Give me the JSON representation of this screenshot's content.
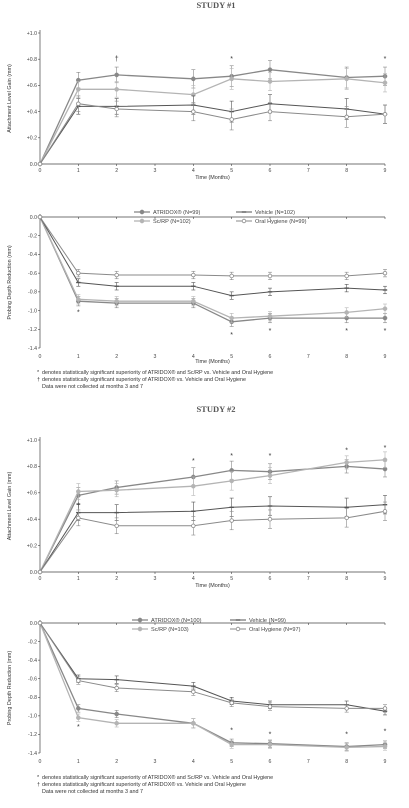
{
  "figure": {
    "study1_title": "STUDY #1",
    "study2_title": "STUDY #2",
    "footnote_star": "denotes statistically significant superiority of ATRIDOX® and Sc/RP vs. Vehicle and Oral Hygiene",
    "footnote_dagger": "denotes statistically significant superiority of ATRIDOX® vs. Vehicle and Oral Hygiene",
    "footnote_note": "Data were not collected at months 3 and 7",
    "star_symbol": "*",
    "dagger_symbol": "†"
  },
  "colors": {
    "axis": "#444444",
    "atridox": "#888888",
    "scrp": "#b4b4b4",
    "vehicle": "#555555",
    "oral_hygiene": "#8a8a8a"
  },
  "chart_data": [
    {
      "id": "s1_attachment",
      "type": "line",
      "xlabel": "Time (Months)",
      "ylabel": "Attachment Level Gain (mm)",
      "x": [
        0,
        1,
        2,
        3,
        4,
        5,
        6,
        7,
        8,
        9
      ],
      "x_ticks": [
        "0",
        "1",
        "2",
        "3",
        "4",
        "5",
        "6",
        "7",
        "8",
        "9"
      ],
      "ylim": [
        0,
        1.0
      ],
      "y_ticks": [
        0,
        0.2,
        0.4,
        0.6,
        0.8,
        1.0
      ],
      "y_tick_labels": [
        "0.0",
        "+0.2",
        "+0.4",
        "+0.6",
        "+0.8",
        "+1.0"
      ],
      "series": [
        {
          "key": "atridox",
          "x": [
            0,
            1,
            2,
            4,
            5,
            6,
            8,
            9
          ],
          "values": [
            0,
            0.64,
            0.68,
            0.65,
            0.67,
            0.72,
            0.66,
            0.67
          ],
          "err": [
            0,
            0.06,
            0.06,
            0.07,
            0.08,
            0.07,
            0.08,
            0.07
          ]
        },
        {
          "key": "scrp",
          "x": [
            0,
            1,
            2,
            4,
            5,
            6,
            8,
            9
          ],
          "values": [
            0,
            0.57,
            0.57,
            0.53,
            0.65,
            0.63,
            0.65,
            0.62
          ],
          "err": [
            0,
            0.06,
            0.06,
            0.07,
            0.08,
            0.07,
            0.08,
            0.07
          ]
        },
        {
          "key": "vehicle",
          "x": [
            0,
            1,
            2,
            4,
            5,
            6,
            8,
            9
          ],
          "values": [
            0,
            0.44,
            0.44,
            0.45,
            0.4,
            0.46,
            0.42,
            0.38
          ],
          "err": [
            0,
            0.06,
            0.06,
            0.07,
            0.08,
            0.07,
            0.08,
            0.07
          ]
        },
        {
          "key": "oral_hygiene",
          "x": [
            0,
            1,
            2,
            4,
            5,
            6,
            8,
            9
          ],
          "values": [
            0,
            0.46,
            0.42,
            0.4,
            0.34,
            0.4,
            0.36,
            0.38
          ],
          "err": [
            0,
            0.06,
            0.06,
            0.07,
            0.08,
            0.07,
            0.08,
            0.07
          ]
        }
      ],
      "markers": [
        {
          "x": 2,
          "y": 0.8,
          "symbol": "†"
        },
        {
          "x": 5,
          "y": 0.8,
          "symbol": "*"
        },
        {
          "x": 9,
          "y": 0.8,
          "symbol": "*"
        }
      ]
    },
    {
      "id": "s1_probing",
      "type": "line",
      "xlabel": "Time (Months)",
      "ylabel": "Probing Depth Reduction (mm)",
      "x": [
        0,
        1,
        2,
        3,
        4,
        5,
        6,
        7,
        8,
        9
      ],
      "x_ticks": [
        "0",
        "1",
        "2",
        "3",
        "4",
        "5",
        "6",
        "7",
        "8",
        "9"
      ],
      "ylim": [
        -1.4,
        0
      ],
      "y_ticks": [
        0,
        -0.2,
        -0.4,
        -0.6,
        -0.8,
        -1.0,
        -1.2,
        -1.4
      ],
      "y_tick_labels": [
        "0.0",
        "-0.2",
        "-0.4",
        "-0.6",
        "-0.8",
        "-1.0",
        "-1.2",
        "-1.4"
      ],
      "series": [
        {
          "key": "atridox",
          "x": [
            0,
            1,
            2,
            4,
            5,
            6,
            8,
            9
          ],
          "values": [
            0,
            -0.9,
            -0.92,
            -0.92,
            -1.12,
            -1.08,
            -1.08,
            -1.08
          ],
          "err": [
            0,
            0.05,
            0.05,
            0.05,
            0.05,
            0.05,
            0.05,
            0.05
          ]
        },
        {
          "key": "scrp",
          "x": [
            0,
            1,
            2,
            4,
            5,
            6,
            8,
            9
          ],
          "values": [
            0,
            -0.88,
            -0.9,
            -0.9,
            -1.08,
            -1.06,
            -1.02,
            -0.98
          ],
          "err": [
            0,
            0.05,
            0.05,
            0.05,
            0.05,
            0.05,
            0.05,
            0.05
          ]
        },
        {
          "key": "vehicle",
          "x": [
            0,
            1,
            2,
            4,
            5,
            6,
            8,
            9
          ],
          "values": [
            0,
            -0.7,
            -0.74,
            -0.74,
            -0.84,
            -0.8,
            -0.76,
            -0.78
          ],
          "err": [
            0,
            0.04,
            0.04,
            0.04,
            0.04,
            0.04,
            0.04,
            0.04
          ]
        },
        {
          "key": "oral_hygiene",
          "x": [
            0,
            1,
            2,
            4,
            5,
            6,
            8,
            9
          ],
          "values": [
            0,
            -0.6,
            -0.62,
            -0.62,
            -0.63,
            -0.63,
            -0.63,
            -0.6
          ],
          "err": [
            0,
            0.04,
            0.04,
            0.04,
            0.04,
            0.04,
            0.04,
            0.04
          ]
        }
      ],
      "markers": [
        {
          "x": 1,
          "y": -1.02,
          "symbol": "*"
        },
        {
          "x": 5,
          "y": -1.26,
          "symbol": "*"
        },
        {
          "x": 6,
          "y": -1.22,
          "symbol": "*"
        },
        {
          "x": 8,
          "y": -1.22,
          "symbol": "*"
        },
        {
          "x": 9,
          "y": -1.22,
          "symbol": "*"
        }
      ],
      "legend": [
        {
          "key": "atridox",
          "label": "ATRIDOX® (N=99)"
        },
        {
          "key": "vehicle",
          "label": "Vehicle (N=102)"
        },
        {
          "key": "scrp",
          "label": "Sc/RP (N=102)"
        },
        {
          "key": "oral_hygiene",
          "label": "Oral Hygiene (N=99)"
        }
      ],
      "legend_position": "upper-center"
    },
    {
      "id": "s2_attachment",
      "type": "line",
      "xlabel": "Time (Months)",
      "ylabel": "Attachment Level Gain (mm)",
      "x": [
        0,
        1,
        2,
        3,
        4,
        5,
        6,
        7,
        8,
        9
      ],
      "x_ticks": [
        "0",
        "1",
        "2",
        "3",
        "4",
        "5",
        "6",
        "7",
        "8",
        "9"
      ],
      "ylim": [
        0,
        1.0
      ],
      "y_ticks": [
        0,
        0.2,
        0.4,
        0.6,
        0.8,
        1.0
      ],
      "y_tick_labels": [
        "0.0",
        "+0.2",
        "+0.4",
        "+0.6",
        "+0.8",
        "+1.0"
      ],
      "series": [
        {
          "key": "atridox",
          "x": [
            0,
            1,
            2,
            4,
            5,
            6,
            8,
            9
          ],
          "values": [
            0,
            0.58,
            0.64,
            0.72,
            0.77,
            0.76,
            0.8,
            0.78
          ],
          "err": [
            0,
            0.06,
            0.05,
            0.07,
            0.07,
            0.06,
            0.05,
            0.06
          ]
        },
        {
          "key": "scrp",
          "x": [
            0,
            1,
            2,
            4,
            5,
            6,
            8,
            9
          ],
          "values": [
            0,
            0.61,
            0.62,
            0.65,
            0.69,
            0.73,
            0.83,
            0.85
          ],
          "err": [
            0,
            0.06,
            0.05,
            0.07,
            0.07,
            0.06,
            0.05,
            0.06
          ]
        },
        {
          "key": "vehicle",
          "x": [
            0,
            1,
            2,
            4,
            5,
            6,
            8,
            9
          ],
          "values": [
            0,
            0.45,
            0.45,
            0.46,
            0.49,
            0.5,
            0.49,
            0.51
          ],
          "err": [
            0,
            0.06,
            0.06,
            0.07,
            0.07,
            0.07,
            0.07,
            0.07
          ]
        },
        {
          "key": "oral_hygiene",
          "x": [
            0,
            1,
            2,
            4,
            5,
            6,
            8,
            9
          ],
          "values": [
            0,
            0.41,
            0.35,
            0.35,
            0.39,
            0.4,
            0.41,
            0.46
          ],
          "err": [
            0,
            0.06,
            0.06,
            0.07,
            0.07,
            0.07,
            0.07,
            0.07
          ]
        }
      ],
      "markers": [
        {
          "x": 1,
          "y": 0.5,
          "symbol": "†"
        },
        {
          "x": 4,
          "y": 0.84,
          "symbol": "*"
        },
        {
          "x": 5,
          "y": 0.88,
          "symbol": "*"
        },
        {
          "x": 6,
          "y": 0.88,
          "symbol": "*"
        },
        {
          "x": 8,
          "y": 0.92,
          "symbol": "*"
        },
        {
          "x": 9,
          "y": 0.94,
          "symbol": "*"
        }
      ]
    },
    {
      "id": "s2_probing",
      "type": "line",
      "xlabel": "",
      "ylabel": "Probing Depth Reduction (mm)",
      "x": [
        0,
        1,
        2,
        3,
        4,
        5,
        6,
        7,
        8,
        9
      ],
      "x_ticks": [
        "0",
        "1",
        "2",
        "3",
        "4",
        "5",
        "6",
        "7",
        "8",
        "9"
      ],
      "ylim": [
        -1.4,
        0
      ],
      "y_ticks": [
        0,
        -0.2,
        -0.4,
        -0.6,
        -0.8,
        -1.0,
        -1.2,
        -1.4
      ],
      "y_tick_labels": [
        "0.0",
        "-0.2",
        "-0.4",
        "-0.6",
        "-0.8",
        "-1.0",
        "-1.2",
        "-1.4"
      ],
      "series": [
        {
          "key": "atridox",
          "x": [
            0,
            1,
            2,
            4,
            5,
            6,
            8,
            9
          ],
          "values": [
            0,
            -0.92,
            -0.98,
            -1.08,
            -1.29,
            -1.3,
            -1.33,
            -1.31
          ],
          "err": [
            0,
            0.04,
            0.04,
            0.05,
            0.04,
            0.04,
            0.04,
            0.04
          ]
        },
        {
          "key": "scrp",
          "x": [
            0,
            1,
            2,
            4,
            5,
            6,
            8,
            9
          ],
          "values": [
            0,
            -1.02,
            -1.08,
            -1.08,
            -1.31,
            -1.31,
            -1.34,
            -1.33
          ],
          "err": [
            0,
            0.04,
            0.04,
            0.05,
            0.04,
            0.04,
            0.04,
            0.04
          ]
        },
        {
          "key": "vehicle",
          "x": [
            0,
            1,
            2,
            4,
            5,
            6,
            8,
            9
          ],
          "values": [
            0,
            -0.6,
            -0.61,
            -0.68,
            -0.84,
            -0.88,
            -0.88,
            -0.95
          ],
          "err": [
            0,
            0.04,
            0.04,
            0.04,
            0.04,
            0.04,
            0.04,
            0.04
          ]
        },
        {
          "key": "oral_hygiene",
          "x": [
            0,
            1,
            2,
            4,
            5,
            6,
            8,
            9
          ],
          "values": [
            0,
            -0.62,
            -0.7,
            -0.74,
            -0.86,
            -0.9,
            -0.92,
            -0.92
          ],
          "err": [
            0,
            0.04,
            0.04,
            0.04,
            0.04,
            0.04,
            0.04,
            0.04
          ]
        }
      ],
      "markers": [
        {
          "x": 1,
          "y": -1.12,
          "symbol": "*"
        },
        {
          "x": 5,
          "y": -1.16,
          "symbol": "*"
        },
        {
          "x": 6,
          "y": -1.2,
          "symbol": "*"
        },
        {
          "x": 8,
          "y": -1.2,
          "symbol": "*"
        },
        {
          "x": 9,
          "y": -1.17,
          "symbol": "*"
        }
      ],
      "legend": [
        {
          "key": "atridox",
          "label": "ATRIDOX® (N=100)"
        },
        {
          "key": "vehicle",
          "label": "Vehicle (N=99)"
        },
        {
          "key": "scrp",
          "label": "Sc/RP (N=103)"
        },
        {
          "key": "oral_hygiene",
          "label": "Oral Hygiene (N=97)"
        }
      ],
      "legend_position": "upper-center"
    }
  ]
}
